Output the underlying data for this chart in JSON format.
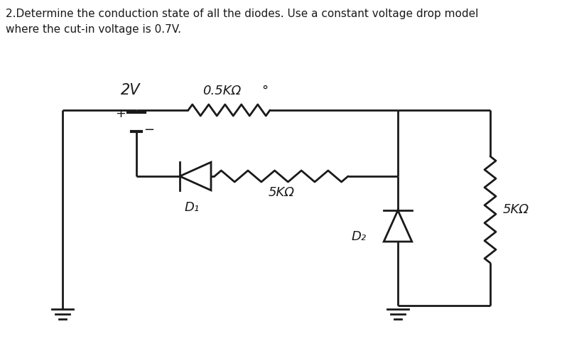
{
  "title_line1": "2.Determine the conduction state of all the diodes. Use a constant voltage drop model",
  "title_line2": "where the cut-in voltage is 0.7V.",
  "background_color": "#ffffff",
  "line_color": "#1a1a1a",
  "text_color": "#1a1a1a",
  "labels": {
    "voltage": "2V",
    "r1": "0.5KΩ",
    "r2": "5KΩ",
    "r3": "5KΩ",
    "d1": "D₁",
    "d2": "D₂",
    "dot": "°"
  },
  "figsize": [
    8.22,
    5.08
  ],
  "dpi": 100
}
